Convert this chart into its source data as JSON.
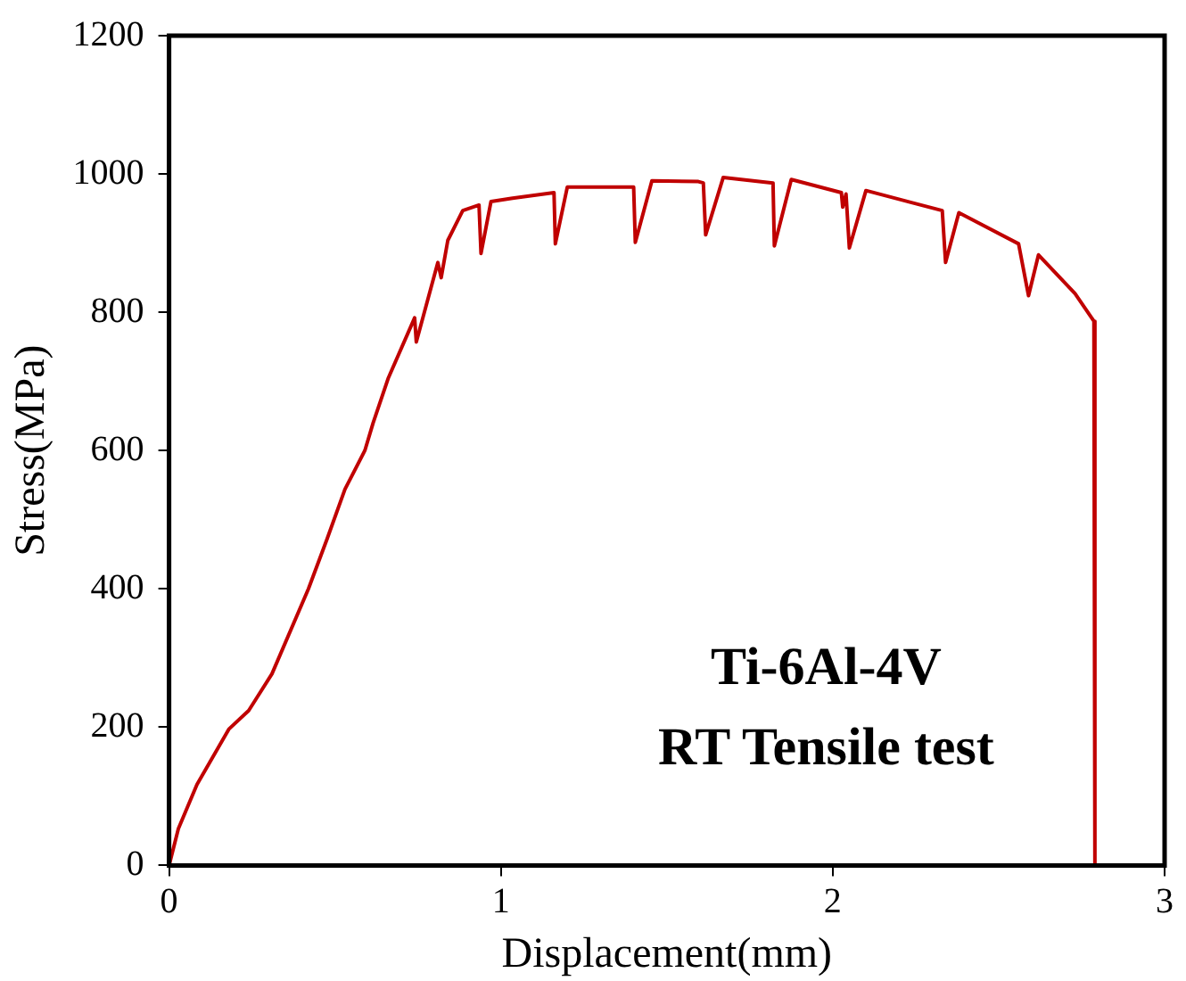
{
  "chart_data": {
    "type": "line",
    "xlabel": "Displacement(mm)",
    "ylabel": "Stress(MPa)",
    "annotations": [
      "Ti-6Al-4V",
      "RT Tensile test"
    ],
    "xlim": [
      0,
      3
    ],
    "xticks": [
      0,
      1,
      2,
      3
    ],
    "ylim": [
      0,
      1200
    ],
    "yticks": [
      0,
      200,
      400,
      600,
      800,
      1000,
      1200
    ],
    "grid": false,
    "legend": false,
    "marker": "none",
    "line_style": "solid",
    "series": [
      {
        "color": "#c00000",
        "x": [
          0,
          0.028,
          0.084,
          0.18,
          0.24,
          0.31,
          0.42,
          0.476,
          0.53,
          0.59,
          0.615,
          0.66,
          0.74,
          0.745,
          0.81,
          0.82,
          0.84,
          0.885,
          0.934,
          0.94,
          0.97,
          1.035,
          1.16,
          1.164,
          1.2,
          1.4,
          1.405,
          1.455,
          1.595,
          1.61,
          1.617,
          1.67,
          1.82,
          1.824,
          1.875,
          2.026,
          2.03,
          2.04,
          2.05,
          2.1,
          2.33,
          2.34,
          2.38,
          2.56,
          2.59,
          2.62,
          2.73,
          2.787,
          2.79
        ],
        "values": [
          0,
          53,
          117,
          197,
          224,
          277,
          400,
          472,
          544,
          600,
          640,
          704,
          792,
          757,
          872,
          850,
          904,
          947,
          955,
          885,
          960,
          965,
          973,
          899,
          981,
          981,
          901,
          990,
          989,
          987,
          912,
          995,
          987,
          896,
          992,
          973,
          952,
          971,
          893,
          976,
          947,
          872,
          944,
          899,
          824,
          883,
          827,
          787,
          0
        ]
      }
    ]
  }
}
